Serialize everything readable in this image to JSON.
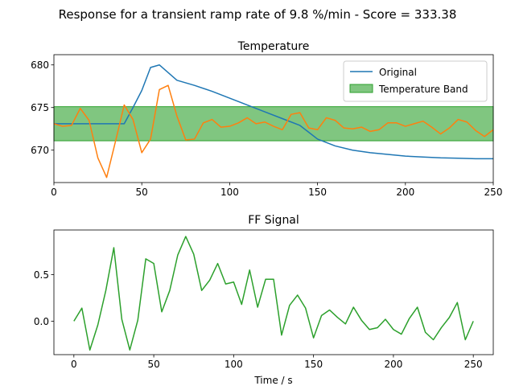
{
  "figure": {
    "suptitle": "Response for a transient ramp rate of 9.8 %/min - Score = 333.38"
  },
  "chart_data": [
    {
      "type": "line",
      "title": "Temperature",
      "xlabel": "",
      "ylabel": "",
      "xlim": [
        0,
        250
      ],
      "ylim": [
        666.2,
        681.2
      ],
      "xticks": [
        0,
        50,
        100,
        150,
        200,
        250
      ],
      "yticks": [
        670,
        675,
        680
      ],
      "legend_position": "top-right",
      "band": {
        "name": "Temperature Band",
        "y0": 671.1,
        "y1": 675.1,
        "color": "#2ca02c"
      },
      "series": [
        {
          "name": "Original",
          "color": "#1f77b4",
          "x": [
            0,
            40,
            45,
            50,
            55,
            60,
            70,
            80,
            90,
            100,
            110,
            120,
            130,
            140,
            150,
            160,
            170,
            180,
            190,
            200,
            210,
            220,
            230,
            240,
            250
          ],
          "y": [
            673.1,
            673.1,
            675.0,
            677.0,
            679.7,
            680.0,
            678.2,
            677.6,
            676.9,
            676.1,
            675.3,
            674.5,
            673.7,
            672.9,
            671.3,
            670.5,
            670.0,
            669.7,
            669.5,
            669.3,
            669.2,
            669.1,
            669.05,
            669.0,
            669.0
          ]
        },
        {
          "color": "#ff7f0e",
          "x": [
            0,
            5,
            10,
            15,
            20,
            25,
            30,
            35,
            40,
            45,
            50,
            55,
            60,
            65,
            70,
            75,
            80,
            85,
            90,
            95,
            100,
            105,
            110,
            115,
            120,
            125,
            130,
            135,
            140,
            145,
            150,
            155,
            160,
            165,
            170,
            175,
            180,
            185,
            190,
            195,
            200,
            205,
            210,
            215,
            220,
            225,
            230,
            235,
            240,
            245,
            250
          ],
          "y": [
            673.1,
            672.8,
            672.9,
            674.9,
            673.5,
            669.1,
            666.8,
            671.0,
            675.3,
            673.6,
            669.7,
            671.3,
            677.1,
            677.6,
            674.0,
            671.2,
            671.3,
            673.2,
            673.6,
            672.7,
            672.8,
            673.2,
            673.8,
            673.1,
            673.3,
            672.8,
            672.4,
            674.2,
            674.4,
            672.6,
            672.4,
            673.8,
            673.5,
            672.6,
            672.5,
            672.7,
            672.2,
            672.4,
            673.2,
            673.2,
            672.8,
            673.1,
            673.4,
            672.7,
            671.9,
            672.6,
            673.6,
            673.3,
            672.3,
            671.6,
            672.4
          ]
        }
      ]
    },
    {
      "type": "line",
      "title": "FF Signal",
      "xlabel": "Time / s",
      "ylabel": "",
      "xlim": [
        -12.5,
        262.5
      ],
      "ylim": [
        -0.36,
        0.98
      ],
      "xticks": [
        0,
        50,
        100,
        150,
        200,
        250
      ],
      "yticks": [
        0.0,
        0.5
      ],
      "ytick_labels": [
        "0.0",
        "0.5"
      ],
      "series": [
        {
          "color": "#2ca02c",
          "x": [
            0,
            5,
            10,
            15,
            20,
            25,
            30,
            35,
            40,
            45,
            50,
            55,
            60,
            65,
            70,
            75,
            80,
            85,
            90,
            95,
            100,
            105,
            110,
            115,
            120,
            125,
            130,
            135,
            140,
            145,
            150,
            155,
            160,
            165,
            170,
            175,
            180,
            185,
            190,
            195,
            200,
            205,
            210,
            215,
            220,
            225,
            230,
            235,
            240,
            245,
            250
          ],
          "y": [
            0.0,
            0.14,
            -0.31,
            -0.04,
            0.33,
            0.79,
            0.02,
            -0.31,
            0.01,
            0.67,
            0.62,
            0.1,
            0.33,
            0.71,
            0.91,
            0.72,
            0.33,
            0.44,
            0.62,
            0.4,
            0.42,
            0.18,
            0.55,
            0.15,
            0.45,
            0.45,
            -0.15,
            0.17,
            0.28,
            0.14,
            -0.18,
            0.06,
            0.12,
            0.04,
            -0.03,
            0.15,
            0.01,
            -0.09,
            -0.07,
            0.02,
            -0.09,
            -0.14,
            0.03,
            0.15,
            -0.12,
            -0.2,
            -0.07,
            0.04,
            0.2,
            -0.2,
            0.0
          ]
        }
      ]
    }
  ]
}
